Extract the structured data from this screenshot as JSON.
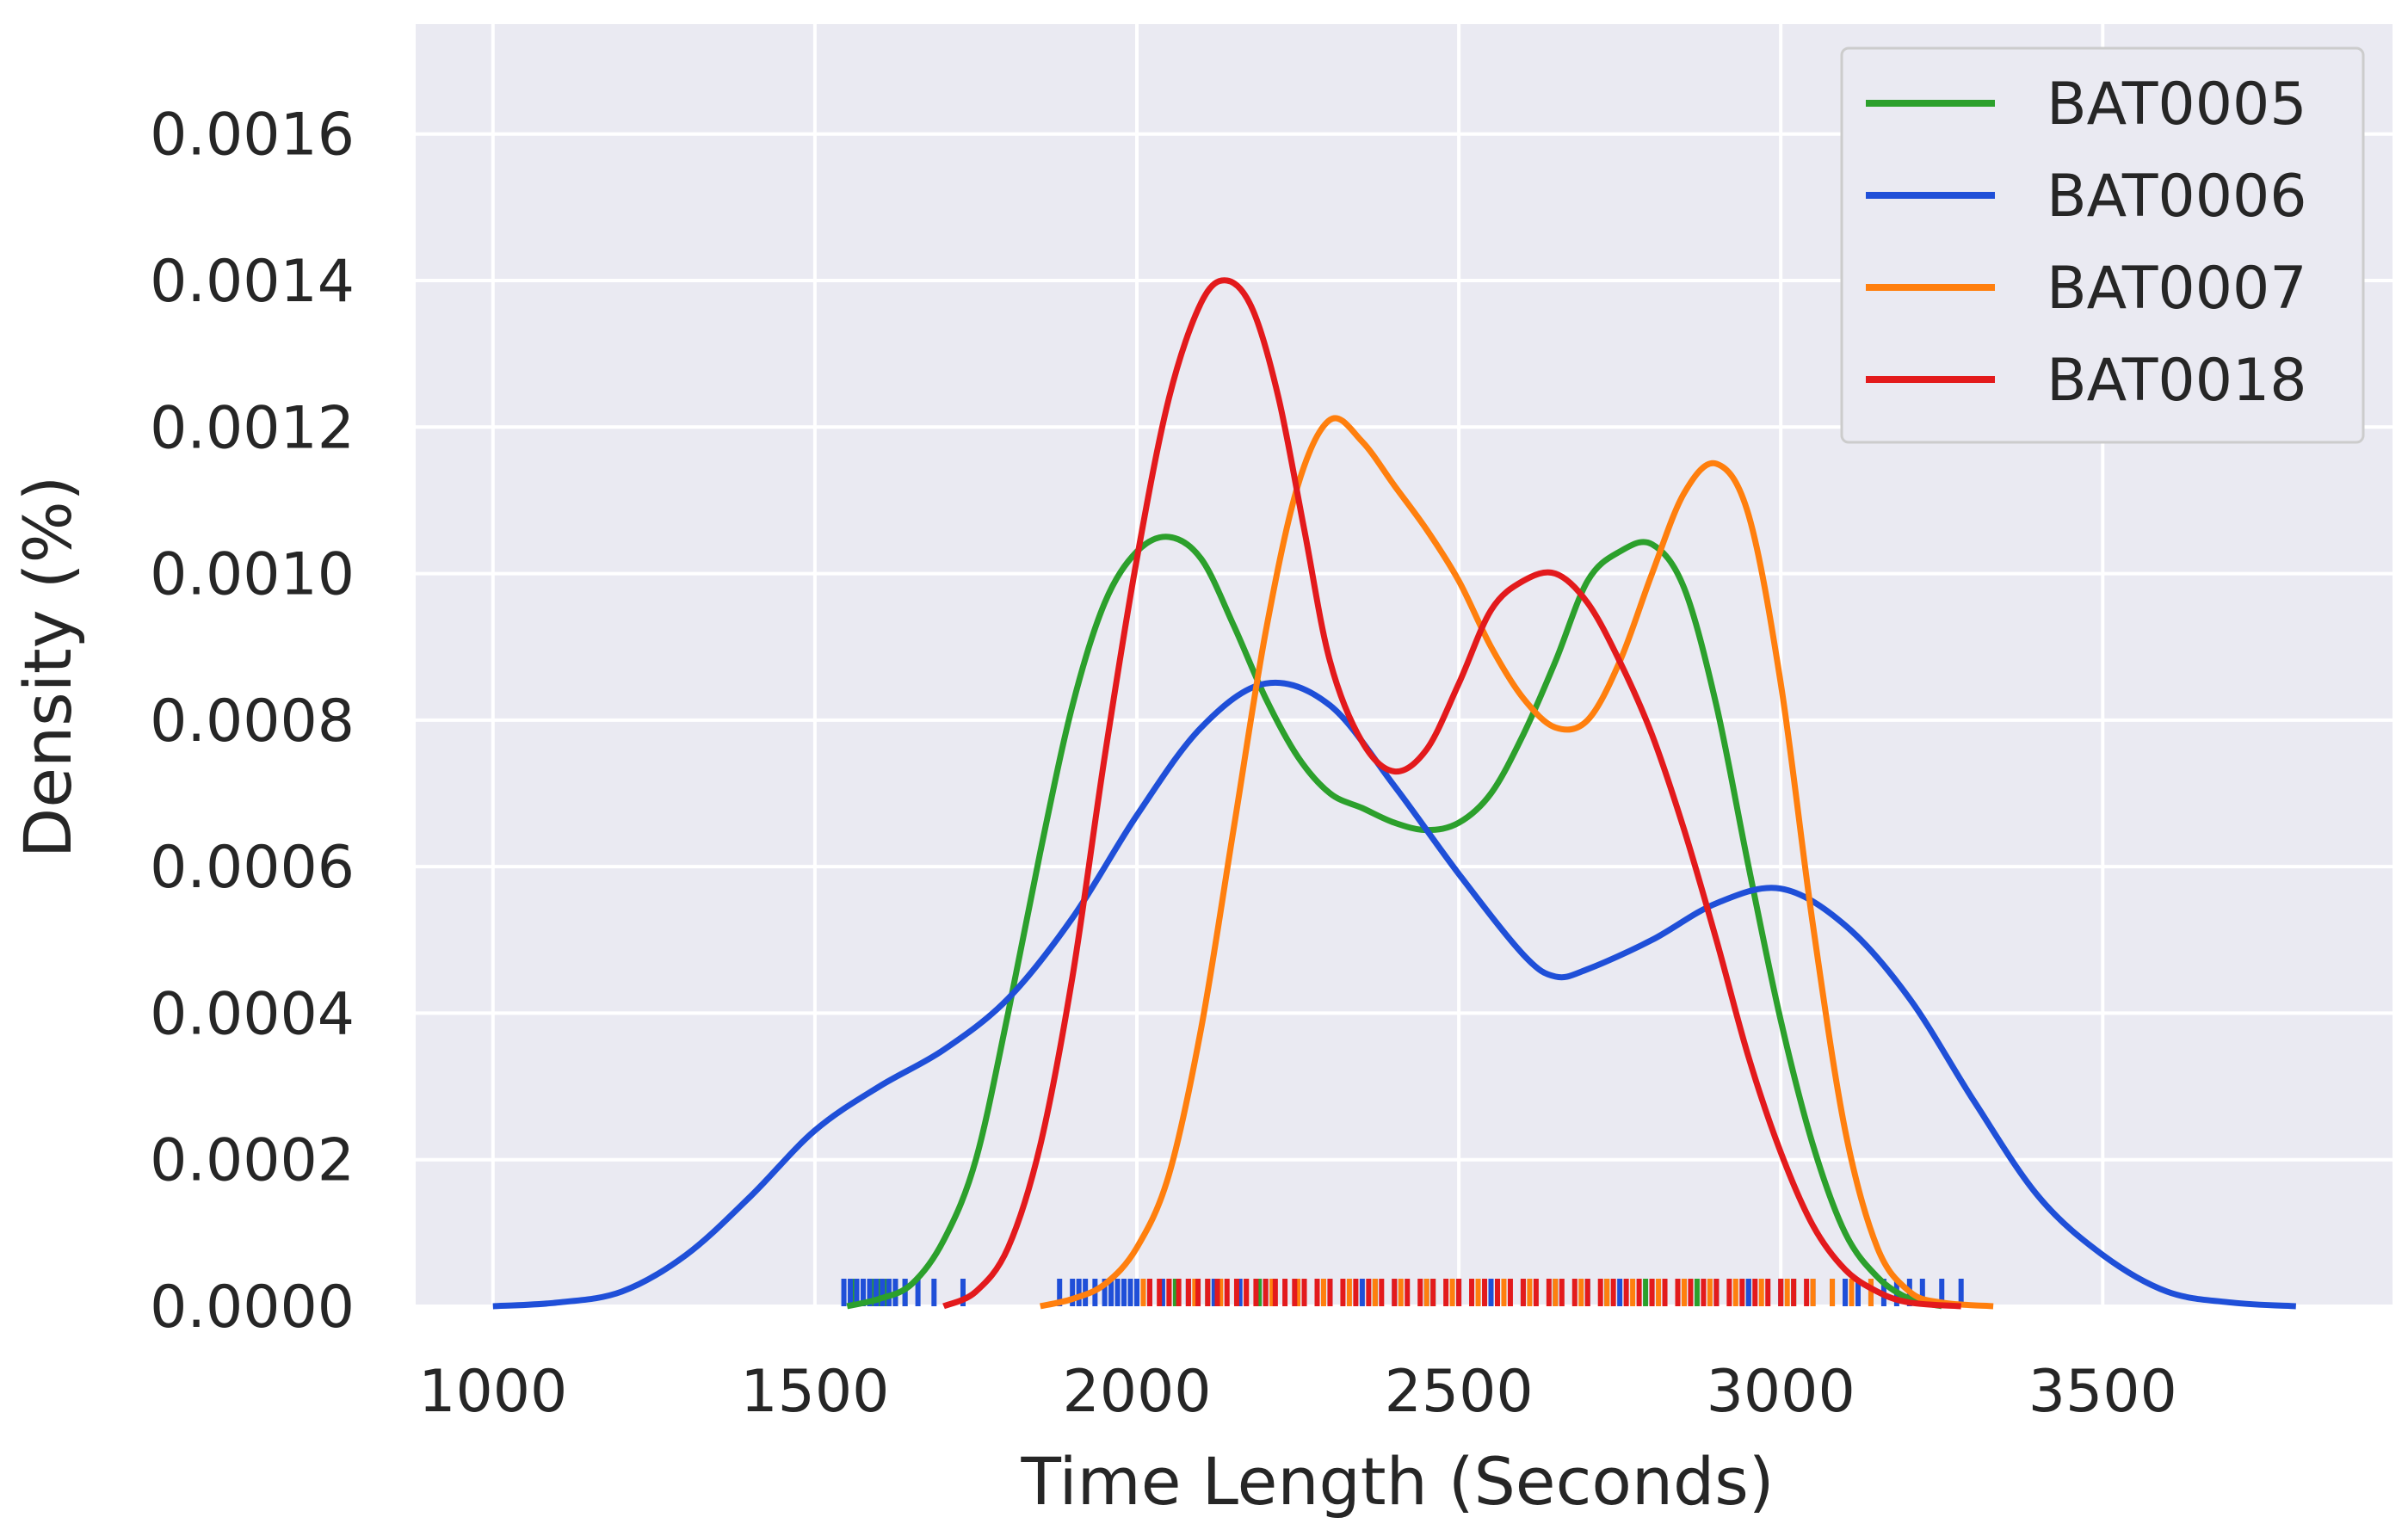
{
  "chart_data": {
    "type": "line",
    "xlabel": "Time Length (Seconds)",
    "ylabel": "Density (%)",
    "xlim": [
      880,
      3950
    ],
    "ylim": [
      0,
      0.00175
    ],
    "xticks": [
      1000,
      1500,
      2000,
      2500,
      3000,
      3500
    ],
    "xtick_labels": [
      "1000",
      "1500",
      "2000",
      "2500",
      "3000",
      "3500"
    ],
    "yticks": [
      0,
      0.0002,
      0.0004,
      0.0006,
      0.0008,
      0.001,
      0.0012,
      0.0014,
      0.0016
    ],
    "ytick_labels": [
      "0.0000",
      "0.0002",
      "0.0004",
      "0.0006",
      "0.0008",
      "0.0010",
      "0.0012",
      "0.0014",
      "0.0016"
    ],
    "grid": true,
    "background": "#eaeaf2",
    "legend_position": "top-right",
    "series": [
      {
        "name": "BAT0005",
        "color": "#2ca02c",
        "points": [
          [
            1550,
            0
          ],
          [
            1600,
            1e-05
          ],
          [
            1650,
            3e-05
          ],
          [
            1700,
            9e-05
          ],
          [
            1750,
            0.0002
          ],
          [
            1800,
            0.0004
          ],
          [
            1850,
            0.00062
          ],
          [
            1900,
            0.00082
          ],
          [
            1950,
            0.00096
          ],
          [
            2000,
            0.00103
          ],
          [
            2050,
            0.00105
          ],
          [
            2100,
            0.00102
          ],
          [
            2150,
            0.00093
          ],
          [
            2200,
            0.00083
          ],
          [
            2250,
            0.00075
          ],
          [
            2300,
            0.0007
          ],
          [
            2350,
            0.00068
          ],
          [
            2400,
            0.00066
          ],
          [
            2450,
            0.00065
          ],
          [
            2500,
            0.00066
          ],
          [
            2550,
            0.0007
          ],
          [
            2600,
            0.00078
          ],
          [
            2650,
            0.00088
          ],
          [
            2700,
            0.00099
          ],
          [
            2750,
            0.00103
          ],
          [
            2800,
            0.00104
          ],
          [
            2850,
            0.00098
          ],
          [
            2900,
            0.00082
          ],
          [
            2950,
            0.0006
          ],
          [
            3000,
            0.00039
          ],
          [
            3050,
            0.00022
          ],
          [
            3100,
            0.0001
          ],
          [
            3150,
            4e-05
          ],
          [
            3200,
            1e-05
          ],
          [
            3250,
            0
          ]
        ],
        "rug": [
          1560,
          1575,
          1590,
          1600,
          1610,
          1625,
          1640,
          2020,
          2060,
          2110,
          2190,
          2280,
          2370,
          2460,
          2560,
          2650,
          2730,
          2790,
          2870,
          2950,
          3020
        ]
      },
      {
        "name": "BAT0006",
        "color": "#1f4fd8",
        "points": [
          [
            1000,
            0
          ],
          [
            1100,
            5e-06
          ],
          [
            1200,
            2e-05
          ],
          [
            1300,
            7e-05
          ],
          [
            1400,
            0.00015
          ],
          [
            1500,
            0.00024
          ],
          [
            1600,
            0.0003
          ],
          [
            1700,
            0.00035
          ],
          [
            1800,
            0.00042
          ],
          [
            1900,
            0.00053
          ],
          [
            2000,
            0.00067
          ],
          [
            2100,
            0.00079
          ],
          [
            2200,
            0.00085
          ],
          [
            2300,
            0.00082
          ],
          [
            2400,
            0.00071
          ],
          [
            2500,
            0.00059
          ],
          [
            2600,
            0.00048
          ],
          [
            2650,
            0.00045
          ],
          [
            2700,
            0.00046
          ],
          [
            2800,
            0.0005
          ],
          [
            2900,
            0.00055
          ],
          [
            3000,
            0.00057
          ],
          [
            3100,
            0.00052
          ],
          [
            3200,
            0.00042
          ],
          [
            3300,
            0.00028
          ],
          [
            3400,
            0.00015
          ],
          [
            3500,
            7e-05
          ],
          [
            3600,
            2e-05
          ],
          [
            3700,
            5e-06
          ],
          [
            3800,
            0
          ]
        ],
        "rug": [
          1545,
          1555,
          1565,
          1575,
          1585,
          1595,
          1605,
          1615,
          1625,
          1640,
          1660,
          1685,
          1730,
          1880,
          1900,
          1910,
          1920,
          1935,
          1950,
          1960,
          1970,
          1980,
          1990,
          2000,
          2020,
          2040,
          2080,
          2120,
          2160,
          2200,
          2250,
          2300,
          2350,
          2400,
          2450,
          2500,
          2550,
          2600,
          2650,
          2700,
          2750,
          2800,
          2850,
          2900,
          2950,
          3000,
          3050,
          3080,
          3100,
          3120,
          3140,
          3160,
          3180,
          3200,
          3220,
          3250,
          3280
        ]
      },
      {
        "name": "BAT0007",
        "color": "#ff7f0e",
        "points": [
          [
            1850,
            0
          ],
          [
            1900,
            1e-05
          ],
          [
            1950,
            3e-05
          ],
          [
            2000,
            8e-05
          ],
          [
            2050,
            0.00018
          ],
          [
            2100,
            0.00038
          ],
          [
            2150,
            0.00065
          ],
          [
            2200,
            0.00092
          ],
          [
            2250,
            0.00112
          ],
          [
            2300,
            0.00121
          ],
          [
            2350,
            0.00118
          ],
          [
            2400,
            0.00112
          ],
          [
            2450,
            0.00106
          ],
          [
            2500,
            0.00099
          ],
          [
            2550,
            0.0009
          ],
          [
            2600,
            0.00083
          ],
          [
            2650,
            0.00079
          ],
          [
            2700,
            0.0008
          ],
          [
            2750,
            0.00088
          ],
          [
            2800,
            0.001
          ],
          [
            2850,
            0.00111
          ],
          [
            2900,
            0.00115
          ],
          [
            2950,
            0.00108
          ],
          [
            3000,
            0.00085
          ],
          [
            3050,
            0.00052
          ],
          [
            3100,
            0.00024
          ],
          [
            3150,
            8e-05
          ],
          [
            3200,
            2e-05
          ],
          [
            3250,
            5e-06
          ],
          [
            3330,
            0
          ]
        ],
        "rug": [
          2010,
          2050,
          2090,
          2130,
          2170,
          2210,
          2250,
          2290,
          2330,
          2370,
          2410,
          2450,
          2490,
          2530,
          2570,
          2610,
          2650,
          2690,
          2730,
          2770,
          2810,
          2850,
          2890,
          2930,
          2970,
          3010,
          3050,
          3080,
          3110,
          3140
        ]
      },
      {
        "name": "BAT0018",
        "color": "#e31a1c",
        "points": [
          [
            1700,
            0
          ],
          [
            1750,
            2e-05
          ],
          [
            1800,
            8e-05
          ],
          [
            1850,
            0.00022
          ],
          [
            1900,
            0.00045
          ],
          [
            1950,
            0.00075
          ],
          [
            2000,
            0.00102
          ],
          [
            2050,
            0.00124
          ],
          [
            2100,
            0.00137
          ],
          [
            2140,
            0.0014
          ],
          [
            2180,
            0.00136
          ],
          [
            2220,
            0.00124
          ],
          [
            2260,
            0.00106
          ],
          [
            2300,
            0.00088
          ],
          [
            2350,
            0.00077
          ],
          [
            2400,
            0.00073
          ],
          [
            2450,
            0.00076
          ],
          [
            2500,
            0.00085
          ],
          [
            2550,
            0.00095
          ],
          [
            2600,
            0.00099
          ],
          [
            2650,
            0.001
          ],
          [
            2700,
            0.00096
          ],
          [
            2750,
            0.00088
          ],
          [
            2800,
            0.00078
          ],
          [
            2850,
            0.00065
          ],
          [
            2900,
            0.0005
          ],
          [
            2950,
            0.00034
          ],
          [
            3000,
            0.00021
          ],
          [
            3050,
            0.00011
          ],
          [
            3100,
            5e-05
          ],
          [
            3150,
            2e-05
          ],
          [
            3200,
            5e-06
          ],
          [
            3280,
            0
          ]
        ],
        "rug": [
          2020,
          2035,
          2050,
          2065,
          2080,
          2095,
          2110,
          2125,
          2140,
          2155,
          2170,
          2185,
          2200,
          2215,
          2230,
          2245,
          2260,
          2280,
          2300,
          2320,
          2340,
          2360,
          2380,
          2400,
          2420,
          2440,
          2460,
          2480,
          2500,
          2520,
          2540,
          2560,
          2580,
          2600,
          2620,
          2640,
          2660,
          2680,
          2700,
          2720,
          2740,
          2760,
          2780,
          2800,
          2820,
          2840,
          2860,
          2880,
          2900,
          2920,
          2940,
          2960,
          2980,
          3000,
          3020,
          3040
        ]
      }
    ]
  }
}
